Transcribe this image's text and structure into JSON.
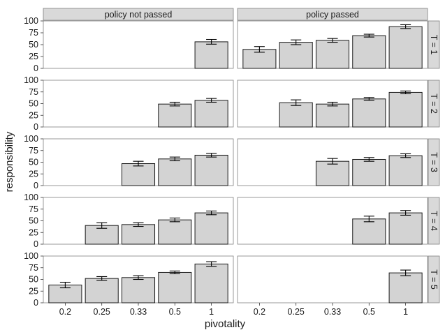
{
  "chart_data": {
    "type": "bar",
    "xlabel": "pivotality",
    "ylabel": "responsibility",
    "ylim": [
      0,
      100
    ],
    "yticks": [
      0,
      25,
      50,
      75,
      100
    ],
    "categories": [
      "0.2",
      "0.25",
      "0.33",
      "0.5",
      "1"
    ],
    "columns": [
      "policy not passed",
      "policy passed"
    ],
    "rows": [
      "T = 1",
      "T = 2",
      "T = 3",
      "T = 4",
      "T = 5"
    ],
    "grid": false,
    "error_bars": true,
    "bar_color": "#d3d3d3",
    "strip_color": "#d9d9d9",
    "panels": [
      {
        "row": "T = 1",
        "column": "policy not passed",
        "values": [
          null,
          null,
          null,
          null,
          56
        ],
        "err": [
          null,
          null,
          null,
          null,
          5
        ]
      },
      {
        "row": "T = 1",
        "column": "policy passed",
        "values": [
          40,
          55,
          59,
          69,
          88
        ],
        "err": [
          6,
          5,
          4,
          3,
          4
        ]
      },
      {
        "row": "T = 2",
        "column": "policy not passed",
        "values": [
          null,
          null,
          null,
          49,
          57
        ],
        "err": [
          null,
          null,
          null,
          4,
          4
        ]
      },
      {
        "row": "T = 2",
        "column": "policy passed",
        "values": [
          null,
          52,
          49,
          60,
          74
        ],
        "err": [
          null,
          6,
          4,
          3,
          3
        ]
      },
      {
        "row": "T = 3",
        "column": "policy not passed",
        "values": [
          null,
          null,
          47,
          57,
          65
        ],
        "err": [
          null,
          null,
          5,
          4,
          4
        ]
      },
      {
        "row": "T = 3",
        "column": "policy passed",
        "values": [
          null,
          null,
          52,
          56,
          64
        ],
        "err": [
          null,
          null,
          6,
          4,
          4
        ]
      },
      {
        "row": "T = 4",
        "column": "policy not passed",
        "values": [
          null,
          40,
          42,
          52,
          67
        ],
        "err": [
          null,
          6,
          4,
          4,
          4
        ]
      },
      {
        "row": "T = 4",
        "column": "policy passed",
        "values": [
          null,
          null,
          null,
          54,
          67
        ],
        "err": [
          null,
          null,
          null,
          6,
          5
        ]
      },
      {
        "row": "T = 5",
        "column": "policy not passed",
        "values": [
          38,
          52,
          54,
          65,
          83
        ],
        "err": [
          6,
          4,
          4,
          3,
          5
        ]
      },
      {
        "row": "T = 5",
        "column": "policy passed",
        "values": [
          null,
          null,
          null,
          null,
          64
        ],
        "err": [
          null,
          null,
          null,
          null,
          6
        ]
      }
    ]
  }
}
